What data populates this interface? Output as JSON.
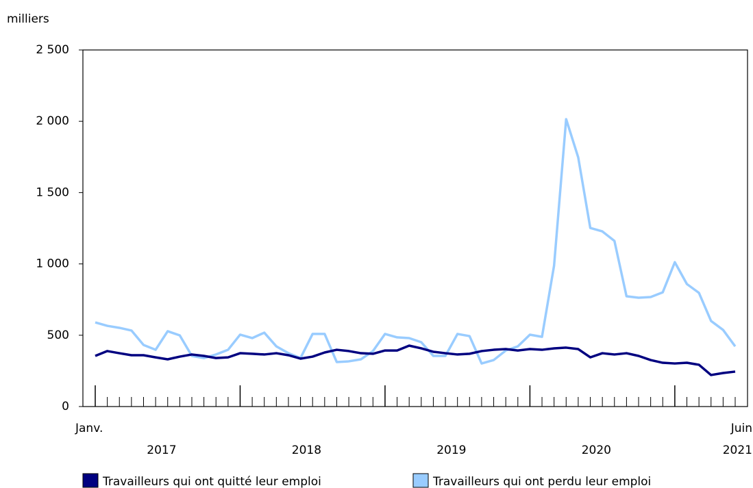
{
  "chart_data": {
    "type": "line",
    "y_axis_label": "milliers",
    "categories": [
      "Janv.",
      null,
      null,
      null,
      null,
      null,
      null,
      null,
      null,
      null,
      null,
      null,
      null,
      null,
      null,
      null,
      null,
      null,
      null,
      null,
      null,
      null,
      null,
      null,
      null,
      null,
      null,
      null,
      null,
      null,
      null,
      null,
      null,
      null,
      null,
      null,
      null,
      null,
      null,
      null,
      null,
      null,
      null,
      null,
      null,
      null,
      null,
      null,
      null,
      null,
      null,
      null,
      null,
      "Juin"
    ],
    "year_labels": [
      "2017",
      "2018",
      "2019",
      "2020",
      "2021"
    ],
    "series": [
      {
        "name": "Travailleurs qui ont quitté leur emploi",
        "color": "#000080",
        "values": [
          355,
          389,
          374,
          360,
          360,
          345,
          331,
          350,
          365,
          355,
          340,
          345,
          374,
          370,
          365,
          374,
          360,
          336,
          350,
          379,
          398,
          389,
          374,
          370,
          393,
          393,
          427,
          408,
          384,
          374,
          365,
          370,
          389,
          398,
          403,
          393,
          403,
          398,
          408,
          413,
          403,
          345,
          374,
          365,
          374,
          355,
          326,
          307,
          302,
          307,
          293,
          221,
          235,
          245
        ]
      },
      {
        "name": "Travailleurs qui ont perdu leur emploi",
        "color": "#99ccff",
        "values": [
          590,
          566,
          552,
          533,
          432,
          398,
          528,
          499,
          355,
          340,
          365,
          398,
          504,
          480,
          518,
          422,
          374,
          340,
          509,
          509,
          312,
          317,
          331,
          389,
          509,
          485,
          480,
          451,
          355,
          355,
          509,
          494,
          302,
          326,
          393,
          422,
          504,
          489,
          988,
          2015,
          1747,
          1252,
          1228,
          1161,
          773,
          763,
          768,
          801,
          1012,
          859,
          797,
          600,
          537,
          422
        ]
      }
    ],
    "ylim": [
      0,
      2500
    ],
    "yticks": [
      0,
      500,
      {
        "value": 1000,
        "label": "1 000"
      },
      {
        "value": 1500,
        "label": "1 500"
      },
      {
        "value": 2000,
        "label": "2 000"
      },
      {
        "value": 2500,
        "label": "2 500"
      }
    ],
    "legend": "bottom"
  }
}
